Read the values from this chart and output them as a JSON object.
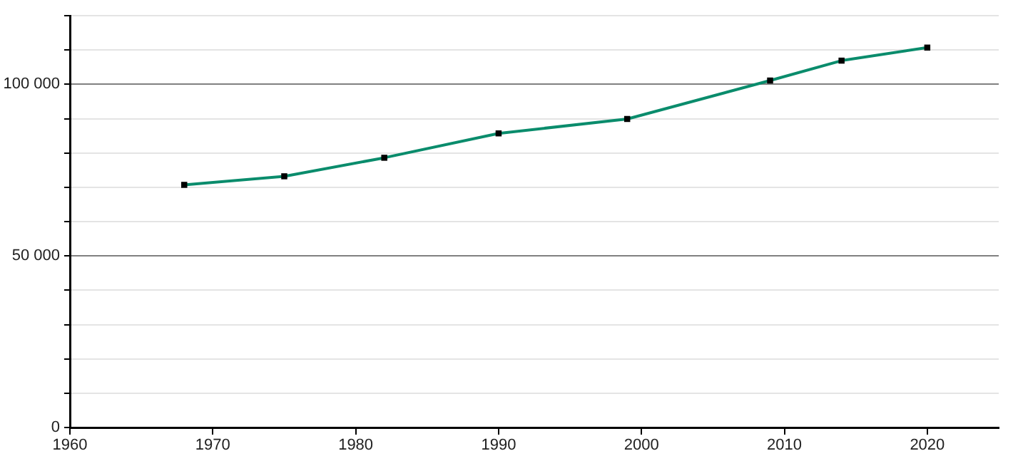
{
  "chart_data": {
    "type": "line",
    "x": [
      1968,
      1975,
      1982,
      1990,
      1999,
      2009,
      2014,
      2020
    ],
    "series": [
      {
        "color": "#0a8c6c",
        "values": [
          70700,
          73200,
          78600,
          85700,
          89900,
          101100,
          106900,
          110700
        ]
      }
    ],
    "xlim": [
      1960,
      2025
    ],
    "xticks": [
      1960,
      1970,
      1980,
      1990,
      2000,
      2010,
      2020
    ],
    "ylim": [
      0,
      120000
    ],
    "yticks": [
      0,
      {
        "value": 10000,
        "label": null
      },
      {
        "value": 20000,
        "label": null
      },
      {
        "value": 30000,
        "label": null
      },
      {
        "value": 40000,
        "label": null
      },
      {
        "value": 50000,
        "label": "50 000"
      },
      {
        "value": 60000,
        "label": null
      },
      {
        "value": 70000,
        "label": null
      },
      {
        "value": 80000,
        "label": null
      },
      {
        "value": 90000,
        "label": null
      },
      {
        "value": 100000,
        "label": "100 000"
      },
      {
        "value": 110000,
        "label": null
      },
      {
        "value": 120000,
        "label": null
      }
    ],
    "grid": "y",
    "marker": "square",
    "line_style": "solid"
  }
}
